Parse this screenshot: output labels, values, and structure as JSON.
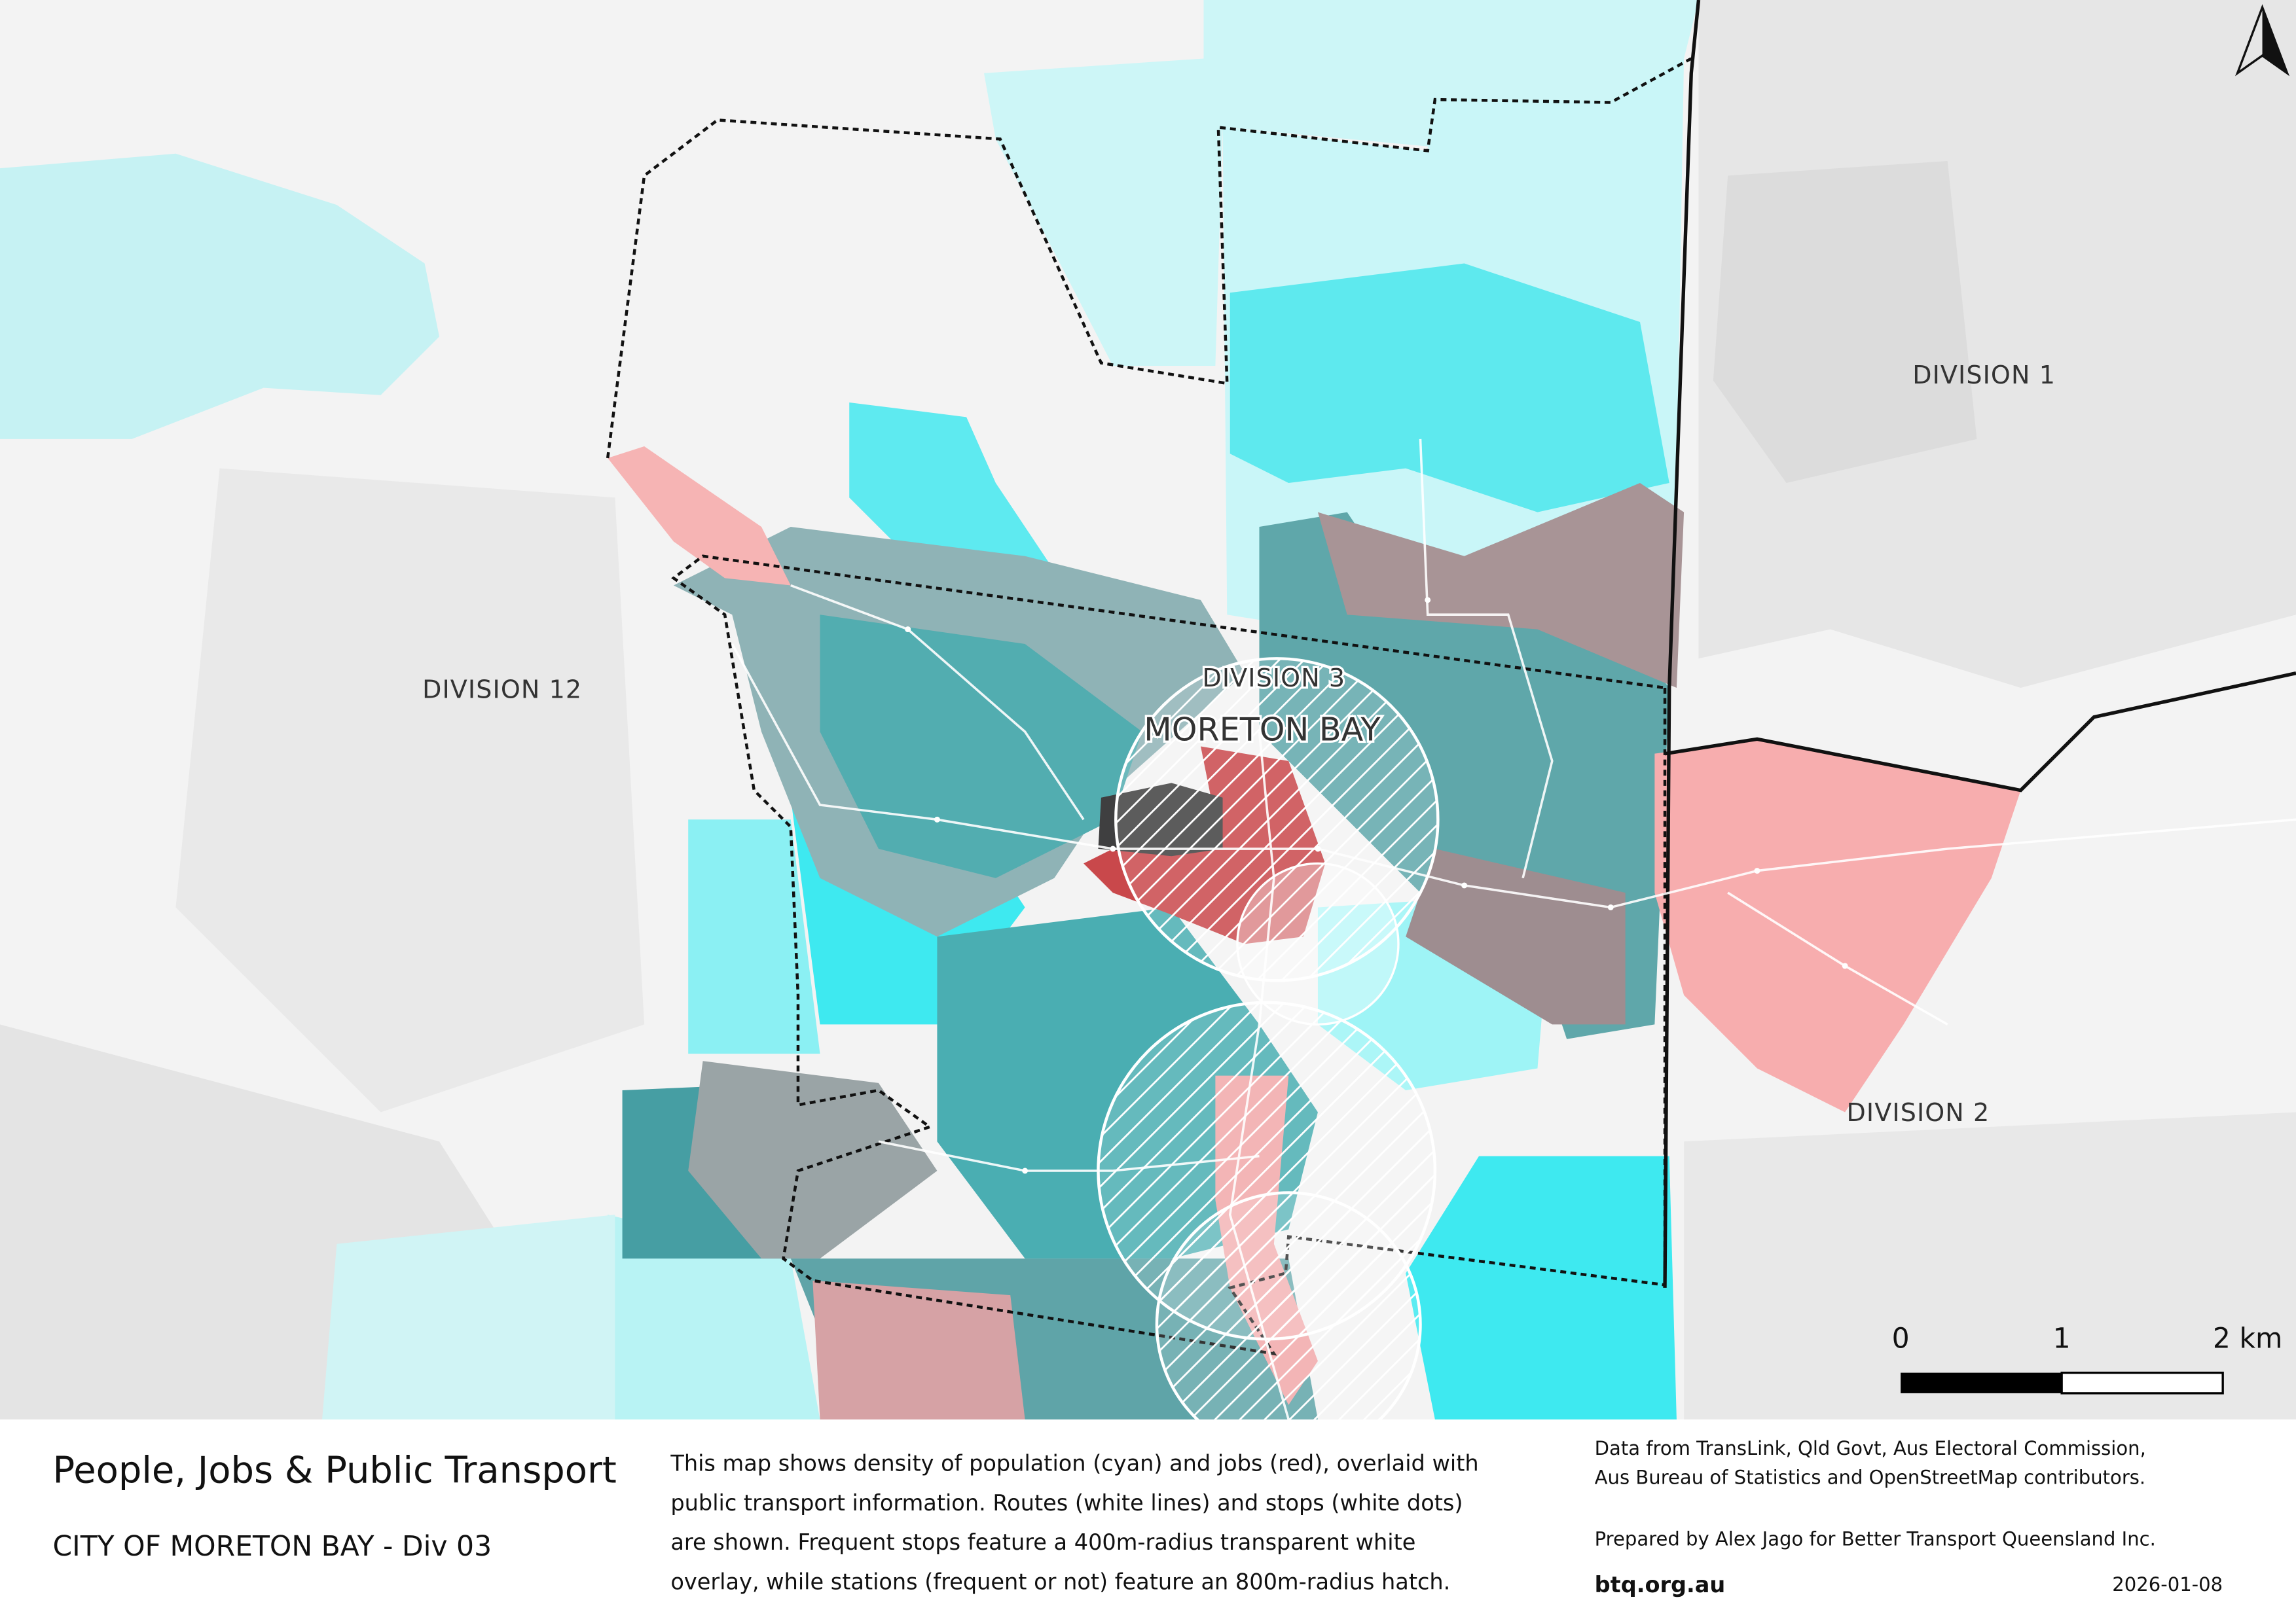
{
  "map": {
    "labels": {
      "division_1": "DIVISION 1",
      "division_12": "DIVISION 12",
      "division_3": "DIVISION 3",
      "place": "MORETON BAY",
      "division_2": "DIVISION 2"
    },
    "scale_bar": [
      "0",
      "1",
      "2 km"
    ]
  },
  "footer": {
    "title": "People, Jobs & Public Transport",
    "subtitle": "CITY OF MORETON BAY - Div 03",
    "description": [
      "This map shows density of population (cyan) and jobs (red), overlaid with",
      "public transport information. Routes (white lines) and stops (white dots)",
      "are shown. Frequent stops feature a 400m-radius transparent white",
      "overlay, while stations (frequent or not) feature an 800m-radius hatch."
    ],
    "credits": [
      "Data from TransLink,  Qld Govt,  Aus Electoral Commission,",
      "Aus Bureau of Statistics and OpenStreetMap contributors."
    ],
    "prepared_by": "Prepared by Alex Jago for Better Transport Queensland Inc.",
    "website": "btq.org.au",
    "date": "2026-01-08"
  }
}
